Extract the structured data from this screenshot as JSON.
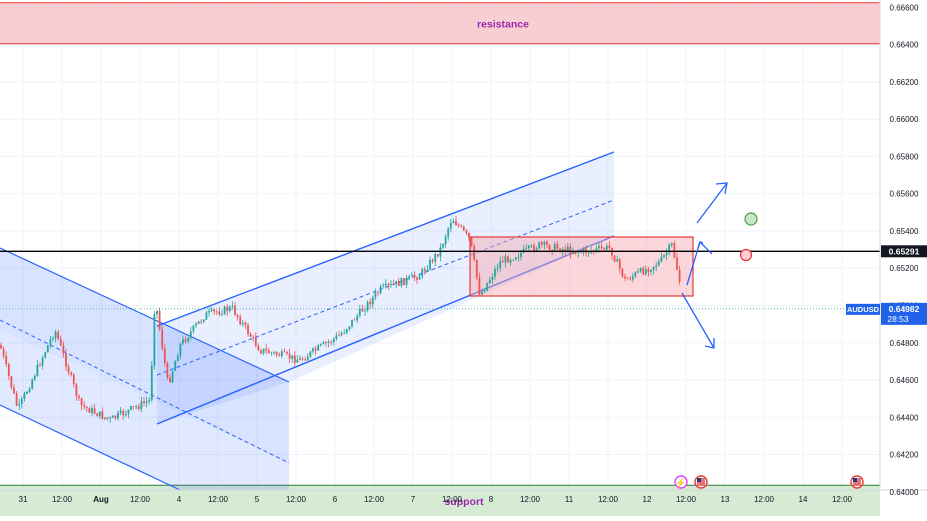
{
  "chart_data": {
    "type": "candlestick",
    "symbol": "AUDUSD",
    "price_axis": {
      "ticks": [
        "0.66600",
        "0.66400",
        "0.66200",
        "0.66000",
        "0.65800",
        "0.65600",
        "0.65400",
        "0.65200",
        "0.65000",
        "0.64800",
        "0.64600",
        "0.64400",
        "0.64200",
        "0.64000"
      ],
      "ylim": [
        0.6387,
        0.6664
      ]
    },
    "time_axis": {
      "ticks": [
        "31",
        "12:00",
        "Aug",
        "12:00",
        "4",
        "12:00",
        "5",
        "12:00",
        "6",
        "12:00",
        "7",
        "12:00",
        "8",
        "12:00",
        "11",
        "12:00",
        "12",
        "12:00",
        "13",
        "12:00",
        "14",
        "12:00"
      ]
    },
    "zones": [
      {
        "label": "resistance",
        "from": 0.66405,
        "to": 0.66625,
        "color": "#f7c6cb"
      },
      {
        "label": "support",
        "from": 0.63865,
        "to": 0.64035,
        "color": "#cfe8cc"
      }
    ],
    "level_line": {
      "label": "0.65291",
      "value": 0.65291
    },
    "current_price": {
      "symbol": "AUDUSD",
      "value": "0.64982",
      "countdown": "28:53"
    },
    "colors": {
      "up": "#26a69a",
      "down": "#ef5350",
      "channel": "#2962ff"
    }
  }
}
